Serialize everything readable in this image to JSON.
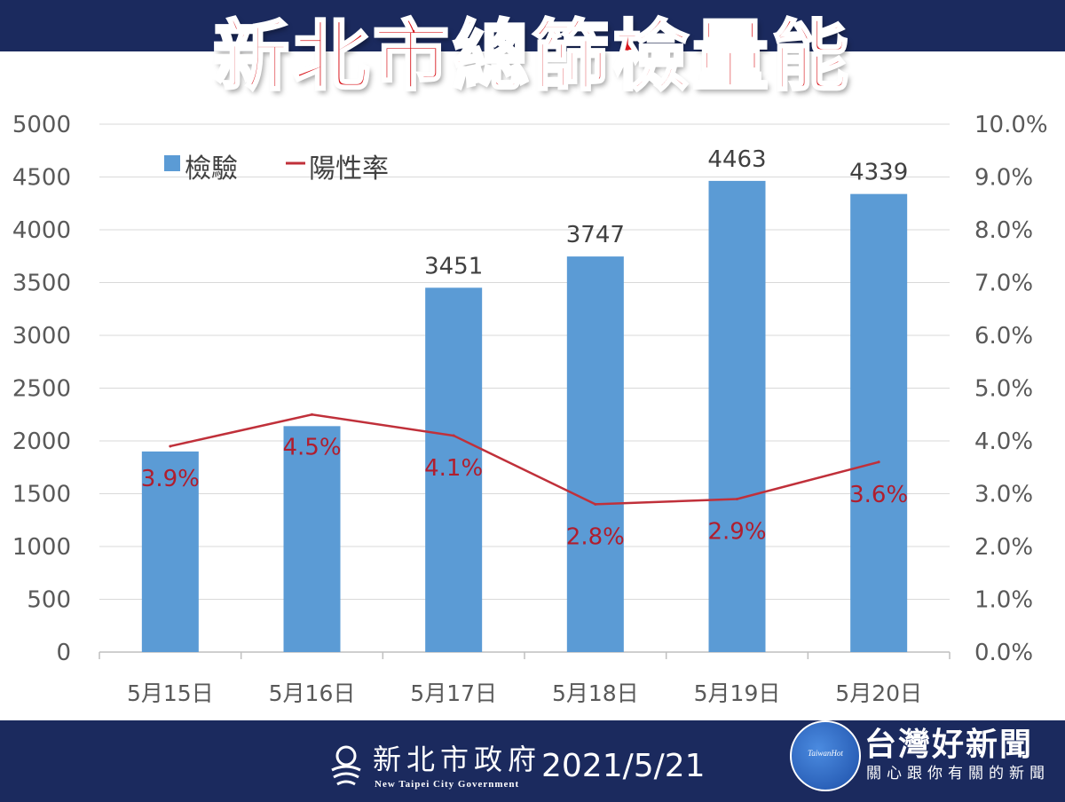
{
  "title": "新北市總篩檢量能",
  "footer": {
    "gov_name": "新北市政府",
    "gov_name_en": "New Taipei City Government",
    "date": "2021/5/21",
    "news_badge": "TaiwanHot",
    "news_name": "台灣好新聞",
    "news_sub": "關心跟你有關的新聞"
  },
  "colors": {
    "header_band": "#1b2a5e",
    "title_red": "#d8151b",
    "bar_blue": "#5b9bd5",
    "line_red": "#c0303a",
    "axis_text": "#595959"
  },
  "chart_data": {
    "type": "bar",
    "categories": [
      "5月15日",
      "5月16日",
      "5月17日",
      "5月18日",
      "5月19日",
      "5月20日"
    ],
    "series": [
      {
        "name": "檢驗",
        "type": "bar",
        "axis": "left",
        "values": [
          1900,
          2140,
          3451,
          3747,
          4463,
          4339
        ],
        "labels": [
          "",
          "",
          "3451",
          "3747",
          "4463",
          "4339"
        ]
      },
      {
        "name": "陽性率",
        "type": "line",
        "axis": "right",
        "values": [
          3.9,
          4.5,
          4.1,
          2.8,
          2.9,
          3.6
        ],
        "labels": [
          "3.9%",
          "4.5%",
          "4.1%",
          "2.8%",
          "2.9%",
          "3.6%"
        ]
      }
    ],
    "y_left": {
      "min": 0,
      "max": 5000,
      "ticks": [
        "0",
        "500",
        "1000",
        "1500",
        "2000",
        "2500",
        "3000",
        "3500",
        "4000",
        "4500",
        "5000"
      ]
    },
    "y_right": {
      "min": 0,
      "max": 10,
      "ticks": [
        "0.0%",
        "1.0%",
        "2.0%",
        "3.0%",
        "4.0%",
        "5.0%",
        "6.0%",
        "7.0%",
        "8.0%",
        "9.0%",
        "10.0%"
      ]
    },
    "grid": true,
    "legend_position": "top-left"
  }
}
